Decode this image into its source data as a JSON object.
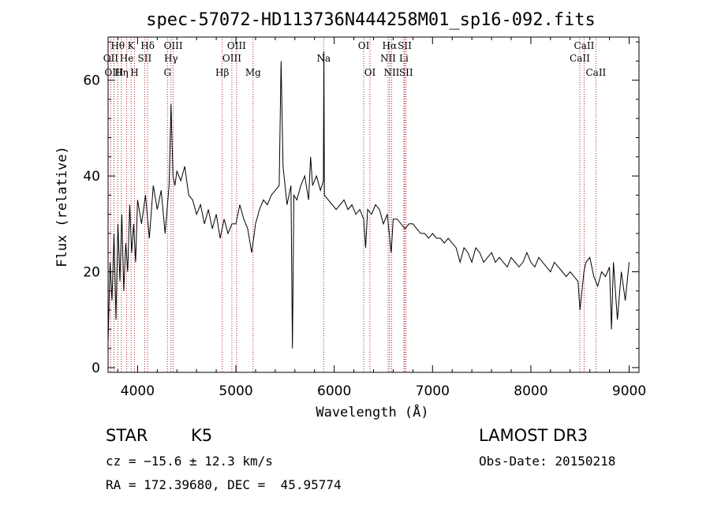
{
  "chart_data": {
    "type": "line",
    "title": "spec-57072-HD113736N444258M01_sp16-092.fits",
    "xlabel": "Wavelength (Å)",
    "ylabel": "Flux (relative)",
    "xlim": [
      3700,
      9100
    ],
    "ylim": [
      -1,
      69
    ],
    "xticks": [
      4000,
      5000,
      6000,
      7000,
      8000,
      9000
    ],
    "yticks": [
      0,
      20,
      40,
      60
    ],
    "series": [
      {
        "name": "flux",
        "x": [
          3700,
          3720,
          3740,
          3760,
          3780,
          3800,
          3820,
          3840,
          3860,
          3880,
          3900,
          3920,
          3940,
          3960,
          3980,
          4000,
          4040,
          4080,
          4120,
          4160,
          4200,
          4240,
          4280,
          4320,
          4340,
          4360,
          4380,
          4400,
          4440,
          4480,
          4520,
          4560,
          4600,
          4640,
          4680,
          4720,
          4760,
          4800,
          4840,
          4880,
          4920,
          4960,
          5000,
          5040,
          5080,
          5120,
          5160,
          5180,
          5200,
          5240,
          5280,
          5320,
          5360,
          5400,
          5440,
          5460,
          5480,
          5520,
          5560,
          5575,
          5590,
          5620,
          5660,
          5700,
          5740,
          5760,
          5780,
          5820,
          5860,
          5890,
          5895,
          5900,
          5940,
          5980,
          6020,
          6060,
          6100,
          6140,
          6180,
          6220,
          6260,
          6300,
          6320,
          6340,
          6380,
          6420,
          6460,
          6500,
          6540,
          6560,
          6580,
          6600,
          6640,
          6680,
          6720,
          6760,
          6800,
          6840,
          6880,
          6920,
          6960,
          7000,
          7040,
          7080,
          7120,
          7160,
          7200,
          7240,
          7280,
          7320,
          7360,
          7400,
          7440,
          7480,
          7520,
          7560,
          7600,
          7640,
          7680,
          7720,
          7760,
          7800,
          7840,
          7880,
          7920,
          7960,
          8000,
          8040,
          8080,
          8120,
          8160,
          8200,
          8240,
          8280,
          8320,
          8360,
          8400,
          8440,
          8480,
          8500,
          8540,
          8560,
          8600,
          8640,
          8680,
          8720,
          8760,
          8800,
          8820,
          8840,
          8880,
          8920,
          8960,
          9000
        ],
        "y": [
          5,
          22,
          14,
          28,
          10,
          30,
          18,
          32,
          16,
          26,
          20,
          34,
          24,
          30,
          22,
          35,
          30,
          36,
          27,
          38,
          33,
          37,
          28,
          38,
          55,
          40,
          38,
          41,
          39,
          42,
          36,
          35,
          32,
          34,
          30,
          33,
          29,
          32,
          27,
          31,
          28,
          30,
          30,
          34,
          31,
          29,
          24,
          27,
          30,
          33,
          35,
          34,
          36,
          37,
          38,
          64,
          42,
          34,
          38,
          4,
          36,
          35,
          38,
          40,
          35,
          44,
          38,
          40,
          37,
          39,
          66,
          36,
          35,
          34,
          33,
          34,
          35,
          33,
          34,
          32,
          33,
          31,
          25,
          33,
          32,
          34,
          33,
          30,
          32,
          28,
          24,
          31,
          31,
          30,
          29,
          30,
          30,
          29,
          28,
          28,
          27,
          28,
          27,
          27,
          26,
          27,
          26,
          25,
          22,
          25,
          24,
          22,
          25,
          24,
          22,
          23,
          24,
          22,
          23,
          22,
          21,
          23,
          22,
          21,
          22,
          24,
          22,
          21,
          23,
          22,
          21,
          20,
          22,
          21,
          20,
          19,
          20,
          19,
          18,
          12,
          20,
          22,
          23,
          19,
          17,
          20,
          19,
          21,
          8,
          22,
          10,
          20,
          14,
          22
        ]
      }
    ],
    "line_markers": [
      {
        "name": "Hθ",
        "wavelength": 3798,
        "row": 1
      },
      {
        "name": "OII",
        "wavelength": 3727,
        "row": 2
      },
      {
        "name": "OIII",
        "wavelength": 3760,
        "row": 3
      },
      {
        "name": "He",
        "wavelength": 3889,
        "row": 2
      },
      {
        "name": "Hη",
        "wavelength": 3835,
        "row": 3
      },
      {
        "name": "K",
        "wavelength": 3934,
        "row": 1
      },
      {
        "name": "H",
        "wavelength": 3969,
        "row": 3
      },
      {
        "name": "SII",
        "wavelength": 4072,
        "row": 2
      },
      {
        "name": "Hδ",
        "wavelength": 4102,
        "row": 1
      },
      {
        "name": "G",
        "wavelength": 4304,
        "row": 3
      },
      {
        "name": "OIII",
        "wavelength": 4363,
        "row": 1
      },
      {
        "name": "Hγ",
        "wavelength": 4340,
        "row": 2
      },
      {
        "name": "Hβ",
        "wavelength": 4861,
        "row": 3
      },
      {
        "name": "OIII",
        "wavelength": 5007,
        "row": 1
      },
      {
        "name": "OIII",
        "wavelength": 4959,
        "row": 2
      },
      {
        "name": "Mg",
        "wavelength": 5175,
        "row": 3
      },
      {
        "name": "Na",
        "wavelength": 5893,
        "row": 2
      },
      {
        "name": "OI",
        "wavelength": 6300,
        "row": 1
      },
      {
        "name": "OI",
        "wavelength": 6364,
        "row": 3
      },
      {
        "name": "Hα",
        "wavelength": 6563,
        "row": 1
      },
      {
        "name": "NII",
        "wavelength": 6548,
        "row": 2
      },
      {
        "name": "NII",
        "wavelength": 6584,
        "row": 3
      },
      {
        "name": "SII",
        "wavelength": 6717,
        "row": 1
      },
      {
        "name": "Li",
        "wavelength": 6708,
        "row": 2
      },
      {
        "name": "SII",
        "wavelength": 6731,
        "row": 3
      },
      {
        "name": "CaII",
        "wavelength": 8542,
        "row": 1
      },
      {
        "name": "CaII",
        "wavelength": 8498,
        "row": 2
      },
      {
        "name": "CaII",
        "wavelength": 8662,
        "row": 3
      }
    ]
  },
  "info": {
    "class": "STAR",
    "subclass": "K5",
    "survey": "LAMOST DR3",
    "cz": "cz = −15.6 ± 12.3 km/s",
    "obs_date": "Obs-Date: 20150218",
    "coords": "RA = 172.39680, DEC =  45.95774"
  },
  "colors": {
    "spectrum": "#000000",
    "markers": "#b22222",
    "axes": "#000000",
    "background": "#ffffff"
  }
}
